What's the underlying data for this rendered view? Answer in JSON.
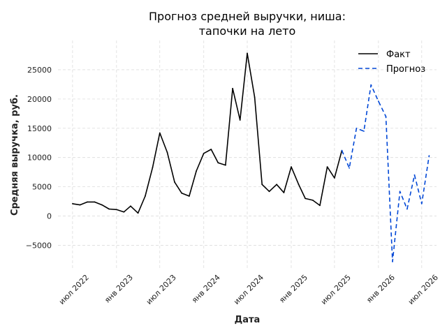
{
  "chart_data": {
    "type": "line",
    "title_lines": [
      "Прогноз средней выручки, ниша:",
      "тапочки на лето"
    ],
    "xlabel": "Дата",
    "ylabel": "Средняя выручка, руб.",
    "xlim": [
      "2022-05-01",
      "2026-09-01"
    ],
    "ylim": [
      -9000,
      30000
    ],
    "yticks": [
      -5000,
      0,
      5000,
      10000,
      15000,
      20000,
      25000
    ],
    "xticks": [
      {
        "date": "2022-07-01",
        "label": "июл 2022"
      },
      {
        "date": "2023-01-01",
        "label": "янв 2023"
      },
      {
        "date": "2023-07-01",
        "label": "июл 2023"
      },
      {
        "date": "2024-01-01",
        "label": "янв 2024"
      },
      {
        "date": "2024-07-01",
        "label": "июл 2024"
      },
      {
        "date": "2025-01-01",
        "label": "янв 2025"
      },
      {
        "date": "2025-07-01",
        "label": "июл 2025"
      },
      {
        "date": "2026-01-01",
        "label": "янв 2026"
      },
      {
        "date": "2026-07-01",
        "label": "июл 2026"
      }
    ],
    "grid": true,
    "legend_position": "top-right",
    "series": [
      {
        "name": "Факт",
        "color": "#000000",
        "style": "solid",
        "points": [
          [
            "2022-07-01",
            2100
          ],
          [
            "2022-08-01",
            1900
          ],
          [
            "2022-09-01",
            2400
          ],
          [
            "2022-10-01",
            2400
          ],
          [
            "2022-11-01",
            1900
          ],
          [
            "2022-12-01",
            1200
          ],
          [
            "2023-01-01",
            1100
          ],
          [
            "2023-02-01",
            700
          ],
          [
            "2023-03-01",
            1700
          ],
          [
            "2023-04-01",
            500
          ],
          [
            "2023-05-01",
            3400
          ],
          [
            "2023-06-01",
            8300
          ],
          [
            "2023-07-01",
            14200
          ],
          [
            "2023-08-01",
            10900
          ],
          [
            "2023-09-01",
            5800
          ],
          [
            "2023-10-01",
            3900
          ],
          [
            "2023-11-01",
            3400
          ],
          [
            "2023-12-01",
            7700
          ],
          [
            "2024-01-01",
            10700
          ],
          [
            "2024-02-01",
            11400
          ],
          [
            "2024-03-01",
            9100
          ],
          [
            "2024-04-01",
            8700
          ],
          [
            "2024-05-01",
            21800
          ],
          [
            "2024-06-01",
            16400
          ],
          [
            "2024-07-01",
            27800
          ],
          [
            "2024-08-01",
            20300
          ],
          [
            "2024-09-01",
            5400
          ],
          [
            "2024-10-01",
            4200
          ],
          [
            "2024-11-01",
            5400
          ],
          [
            "2024-12-01",
            4000
          ],
          [
            "2025-01-01",
            8400
          ],
          [
            "2025-02-01",
            5400
          ],
          [
            "2025-03-01",
            3000
          ],
          [
            "2025-04-01",
            2700
          ],
          [
            "2025-05-01",
            1800
          ],
          [
            "2025-06-01",
            8400
          ],
          [
            "2025-07-01",
            6500
          ],
          [
            "2025-08-01",
            11200
          ]
        ]
      },
      {
        "name": "Прогноз",
        "color": "#0047d6",
        "style": "dashed",
        "points": [
          [
            "2025-08-01",
            11200
          ],
          [
            "2025-09-01",
            8200
          ],
          [
            "2025-10-01",
            15000
          ],
          [
            "2025-11-01",
            14500
          ],
          [
            "2025-12-01",
            22400
          ],
          [
            "2026-01-01",
            19600
          ],
          [
            "2026-02-01",
            17000
          ],
          [
            "2026-03-01",
            -7800
          ],
          [
            "2026-04-01",
            4200
          ],
          [
            "2026-05-01",
            1200
          ],
          [
            "2026-06-01",
            7000
          ],
          [
            "2026-07-01",
            2100
          ],
          [
            "2026-08-01",
            10300
          ]
        ]
      }
    ]
  }
}
